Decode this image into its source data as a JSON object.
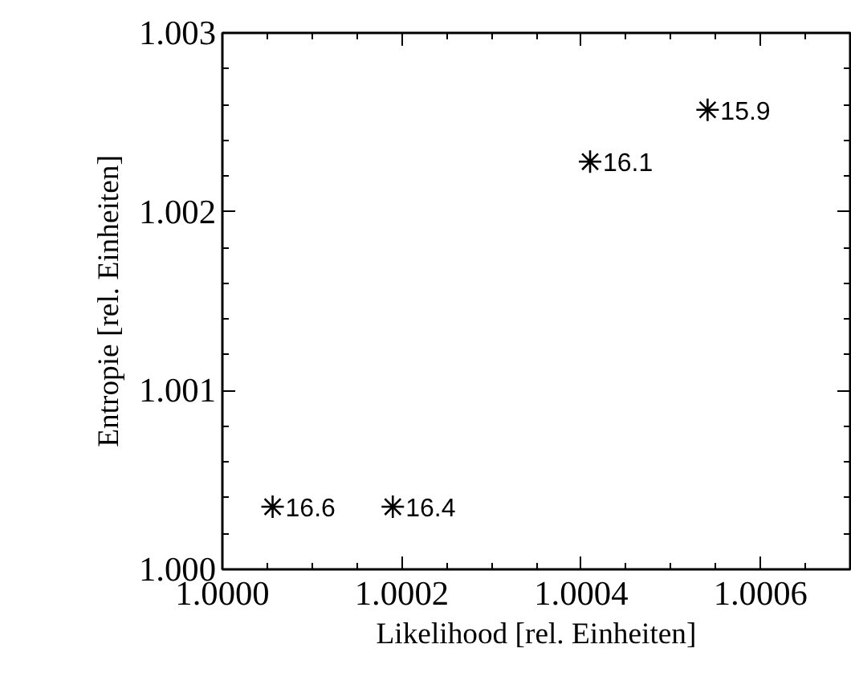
{
  "chart_data": {
    "type": "scatter",
    "xlabel": "Likelihood [rel. Einheiten]",
    "ylabel": "Entropie [rel. Einheiten]",
    "x": [
      1.000056,
      1.00019,
      1.00041,
      1.000541
    ],
    "series": [
      {
        "color": "#000000",
        "values": [
          1.00035,
          1.00035,
          1.00228,
          1.00257
        ]
      }
    ],
    "marker": "cross",
    "grid": false,
    "annotations": [
      {
        "text": "16.6",
        "x": 1.000056,
        "y": 1.00035
      },
      {
        "text": "16.4",
        "x": 1.00019,
        "y": 1.00035
      },
      {
        "text": "16.1",
        "x": 1.00041,
        "y": 1.00228
      },
      {
        "text": "15.9",
        "x": 1.000541,
        "y": 1.00257
      }
    ],
    "xlim": [
      1.0,
      1.0007
    ],
    "ylim": [
      1.0,
      1.003
    ],
    "xticks": [
      {
        "value": 1.0,
        "label": "1.0000"
      },
      {
        "value": 1.00005,
        "label": null
      },
      {
        "value": 1.0001,
        "label": null
      },
      {
        "value": 1.00015,
        "label": null
      },
      {
        "value": 1.0002,
        "label": "1.0002"
      },
      {
        "value": 1.00025,
        "label": null
      },
      {
        "value": 1.0003,
        "label": null
      },
      {
        "value": 1.00035,
        "label": null
      },
      {
        "value": 1.0004,
        "label": "1.0004"
      },
      {
        "value": 1.00045,
        "label": null
      },
      {
        "value": 1.0005,
        "label": null
      },
      {
        "value": 1.00055,
        "label": null
      },
      {
        "value": 1.0006,
        "label": "1.0006"
      },
      {
        "value": 1.00065,
        "label": null
      }
    ],
    "yticks": [
      {
        "value": 1.0,
        "label": "1.000"
      },
      {
        "value": 1.0002,
        "label": null
      },
      {
        "value": 1.0004,
        "label": null
      },
      {
        "value": 1.0006,
        "label": null
      },
      {
        "value": 1.0008,
        "label": null
      },
      {
        "value": 1.001,
        "label": "1.001"
      },
      {
        "value": 1.0012,
        "label": null
      },
      {
        "value": 1.0014,
        "label": null
      },
      {
        "value": 1.0016,
        "label": null
      },
      {
        "value": 1.0018,
        "label": null
      },
      {
        "value": 1.002,
        "label": "1.002"
      },
      {
        "value": 1.0022,
        "label": null
      },
      {
        "value": 1.0024,
        "label": null
      },
      {
        "value": 1.0026,
        "label": null
      },
      {
        "value": 1.0028,
        "label": null
      },
      {
        "value": 1.003,
        "label": "1.003"
      }
    ]
  }
}
